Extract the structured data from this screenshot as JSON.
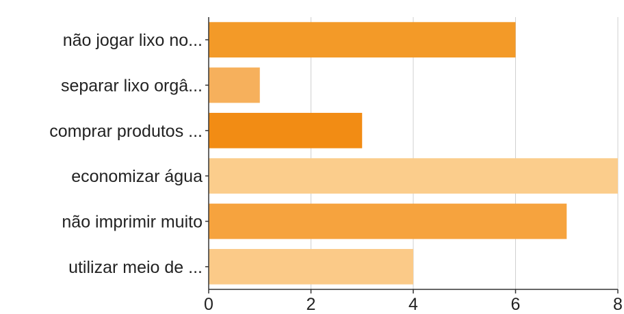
{
  "chart_data": {
    "type": "bar",
    "orientation": "horizontal",
    "categories": [
      "não jogar lixo no...",
      "separar lixo orgâ...",
      "comprar produtos ...",
      "economizar água",
      "não imprimir muito",
      "utilizar meio de ..."
    ],
    "values": [
      6,
      1,
      3,
      8,
      7,
      4
    ],
    "bar_colors": [
      "#f39a28",
      "#f6b05c",
      "#f28c14",
      "#fbcd8c",
      "#f6a33e",
      "#fbca88"
    ],
    "title": "",
    "xlabel": "",
    "ylabel": "",
    "xlim": [
      0,
      8
    ],
    "xticks": [
      0,
      2,
      4,
      6,
      8
    ],
    "grid": true,
    "legend": "none"
  }
}
